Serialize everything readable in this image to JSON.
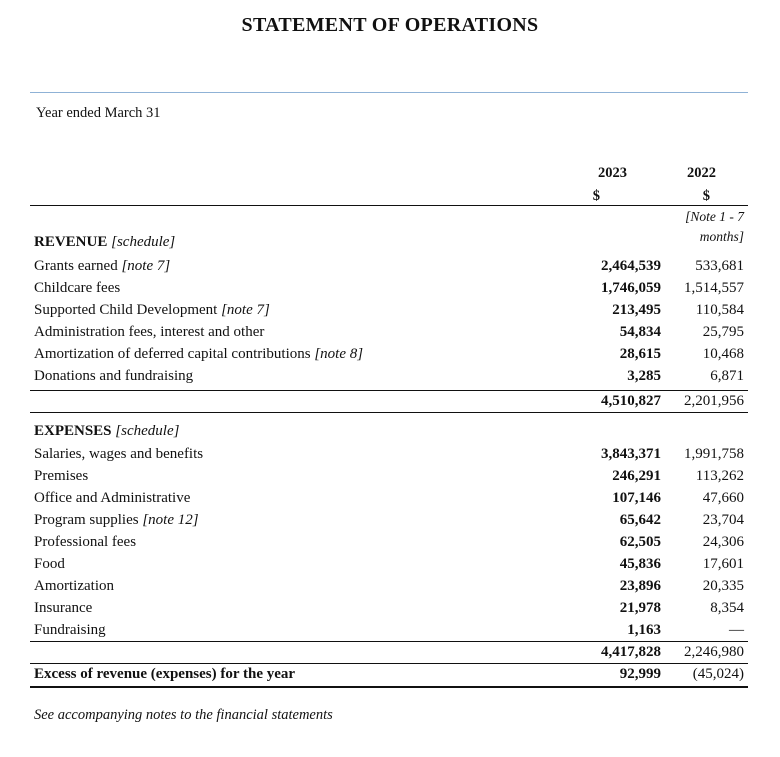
{
  "title": "STATEMENT OF OPERATIONS",
  "period_label": "Year ended March 31",
  "columns": {
    "current_year": "2023",
    "prior_year": "2022",
    "currency_current": "$",
    "currency_prior": "$",
    "prior_note_line1": "[Note 1 - 7",
    "prior_note_line2": "months]"
  },
  "revenue": {
    "heading": "REVENUE",
    "heading_note": "[schedule]",
    "items": [
      {
        "label": "Grants earned",
        "note": "[note 7]",
        "v2023": "2,464,539",
        "v2022": "533,681"
      },
      {
        "label": "Childcare fees",
        "note": "",
        "v2023": "1,746,059",
        "v2022": "1,514,557"
      },
      {
        "label": "Supported Child Development",
        "note": "[note 7]",
        "v2023": "213,495",
        "v2022": "110,584"
      },
      {
        "label": "Administration fees, interest and other",
        "note": "",
        "v2023": "54,834",
        "v2022": "25,795"
      },
      {
        "label": "Amortization of deferred capital contributions",
        "note": "[note 8]",
        "v2023": "28,615",
        "v2022": "10,468"
      },
      {
        "label": "Donations and fundraising",
        "note": "",
        "v2023": "3,285",
        "v2022": "6,871"
      }
    ],
    "total_2023": "4,510,827",
    "total_2022": "2,201,956"
  },
  "expenses": {
    "heading": "EXPENSES",
    "heading_note": "[schedule]",
    "items": [
      {
        "label": "Salaries, wages and benefits",
        "note": "",
        "v2023": "3,843,371",
        "v2022": "1,991,758"
      },
      {
        "label": "Premises",
        "note": "",
        "v2023": "246,291",
        "v2022": "113,262"
      },
      {
        "label": "Office and Administrative",
        "note": "",
        "v2023": "107,146",
        "v2022": "47,660"
      },
      {
        "label": "Program supplies",
        "note": "[note 12]",
        "v2023": "65,642",
        "v2022": "23,704"
      },
      {
        "label": "Professional fees",
        "note": "",
        "v2023": "62,505",
        "v2022": "24,306"
      },
      {
        "label": "Food",
        "note": "",
        "v2023": "45,836",
        "v2022": "17,601"
      },
      {
        "label": "Amortization",
        "note": "",
        "v2023": "23,896",
        "v2022": "20,335"
      },
      {
        "label": "Insurance",
        "note": "",
        "v2023": "21,978",
        "v2022": "8,354"
      },
      {
        "label": "Fundraising",
        "note": "",
        "v2023": "1,163",
        "v2022": "—"
      }
    ],
    "total_2023": "4,417,828",
    "total_2022": "2,246,980"
  },
  "excess": {
    "label": "Excess of revenue (expenses) for the year",
    "v2023": "92,999",
    "v2022": "(45,024)"
  },
  "footnote": "See accompanying notes to the financial statements"
}
